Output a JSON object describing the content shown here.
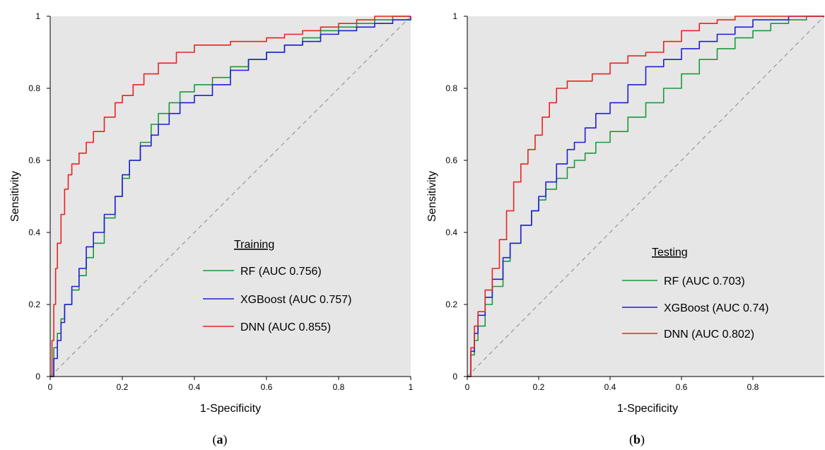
{
  "chart_data": [
    {
      "type": "line",
      "panel_label": "a",
      "xlabel": "1-Specificity",
      "ylabel": "Sensitivity",
      "xlim": [
        0,
        1
      ],
      "ylim": [
        0,
        1
      ],
      "x_ticks": [
        "0",
        "0.2",
        "0.4",
        "0.6",
        "0.8",
        "1"
      ],
      "y_ticks": [
        "0",
        "0.2",
        "0.4",
        "0.6",
        "0.8",
        "1"
      ],
      "grid": false,
      "background": "#e6e6e6",
      "legend_title": "Training",
      "legend_position": "lower-right",
      "series": [
        {
          "name": "RF (AUC 0.756)",
          "color": "#1a9a3a",
          "x": [
            0,
            0.01,
            0.02,
            0.03,
            0.04,
            0.06,
            0.08,
            0.1,
            0.12,
            0.15,
            0.18,
            0.2,
            0.22,
            0.25,
            0.28,
            0.3,
            0.33,
            0.36,
            0.4,
            0.45,
            0.5,
            0.55,
            0.6,
            0.65,
            0.7,
            0.75,
            0.8,
            0.85,
            0.9,
            0.95,
            1.0
          ],
          "y": [
            0,
            0.08,
            0.12,
            0.16,
            0.2,
            0.24,
            0.28,
            0.33,
            0.37,
            0.44,
            0.5,
            0.55,
            0.6,
            0.65,
            0.7,
            0.73,
            0.76,
            0.79,
            0.81,
            0.83,
            0.86,
            0.88,
            0.9,
            0.92,
            0.94,
            0.96,
            0.97,
            0.98,
            0.99,
            1.0,
            1.0
          ]
        },
        {
          "name": "XGBoost (AUC 0.757)",
          "color": "#1f1fd6",
          "x": [
            0,
            0.01,
            0.02,
            0.03,
            0.04,
            0.06,
            0.08,
            0.1,
            0.12,
            0.15,
            0.18,
            0.2,
            0.22,
            0.25,
            0.28,
            0.3,
            0.33,
            0.36,
            0.4,
            0.45,
            0.5,
            0.55,
            0.6,
            0.65,
            0.7,
            0.75,
            0.8,
            0.85,
            0.9,
            0.95,
            1.0
          ],
          "y": [
            0,
            0.05,
            0.1,
            0.15,
            0.2,
            0.25,
            0.3,
            0.36,
            0.4,
            0.45,
            0.5,
            0.56,
            0.6,
            0.64,
            0.67,
            0.7,
            0.73,
            0.76,
            0.78,
            0.81,
            0.85,
            0.88,
            0.9,
            0.92,
            0.93,
            0.95,
            0.96,
            0.97,
            0.98,
            0.99,
            1.0
          ]
        },
        {
          "name": "DNN (AUC 0.855)",
          "color": "#e8231e",
          "x": [
            0,
            0.005,
            0.01,
            0.015,
            0.02,
            0.03,
            0.04,
            0.05,
            0.06,
            0.08,
            0.1,
            0.12,
            0.15,
            0.18,
            0.2,
            0.23,
            0.26,
            0.3,
            0.35,
            0.4,
            0.45,
            0.5,
            0.55,
            0.6,
            0.65,
            0.7,
            0.75,
            0.8,
            0.85,
            0.9,
            0.95,
            1.0
          ],
          "y": [
            0,
            0.1,
            0.2,
            0.3,
            0.37,
            0.45,
            0.52,
            0.56,
            0.59,
            0.62,
            0.65,
            0.68,
            0.72,
            0.76,
            0.78,
            0.81,
            0.84,
            0.87,
            0.9,
            0.92,
            0.92,
            0.93,
            0.93,
            0.94,
            0.95,
            0.96,
            0.97,
            0.98,
            0.99,
            1.0,
            1.0,
            1.0
          ]
        }
      ]
    },
    {
      "type": "line",
      "panel_label": "b",
      "xlabel": "1-Specificity",
      "ylabel": "Sensitivity",
      "xlim": [
        0,
        1
      ],
      "ylim": [
        0,
        1
      ],
      "x_ticks": [
        "0",
        "0.2",
        "0.4",
        "0.6",
        "0.8"
      ],
      "y_ticks": [
        "0",
        "0.2",
        "0.4",
        "0.6",
        "0.8",
        "1"
      ],
      "grid": false,
      "background": "#e6e6e6",
      "legend_title": "Testing",
      "legend_position": "lower-right",
      "series": [
        {
          "name": "RF (AUC 0.703)",
          "color": "#1a9a3a",
          "x": [
            0,
            0.01,
            0.02,
            0.03,
            0.05,
            0.07,
            0.1,
            0.12,
            0.15,
            0.18,
            0.2,
            0.22,
            0.25,
            0.28,
            0.3,
            0.33,
            0.36,
            0.4,
            0.45,
            0.5,
            0.55,
            0.6,
            0.65,
            0.7,
            0.75,
            0.8,
            0.85,
            0.9,
            0.95,
            1.0
          ],
          "y": [
            0,
            0.06,
            0.1,
            0.14,
            0.2,
            0.25,
            0.32,
            0.37,
            0.42,
            0.46,
            0.49,
            0.52,
            0.55,
            0.58,
            0.6,
            0.62,
            0.65,
            0.68,
            0.72,
            0.76,
            0.8,
            0.84,
            0.88,
            0.91,
            0.94,
            0.96,
            0.98,
            0.99,
            1.0,
            1.0
          ]
        },
        {
          "name": "XGBoost (AUC 0.74)",
          "color": "#1f1fd6",
          "x": [
            0,
            0.01,
            0.02,
            0.03,
            0.05,
            0.07,
            0.1,
            0.12,
            0.15,
            0.18,
            0.2,
            0.22,
            0.25,
            0.28,
            0.3,
            0.33,
            0.36,
            0.4,
            0.45,
            0.5,
            0.55,
            0.6,
            0.65,
            0.7,
            0.75,
            0.8,
            0.85,
            0.9,
            0.95,
            1.0
          ],
          "y": [
            0,
            0.07,
            0.12,
            0.17,
            0.22,
            0.27,
            0.33,
            0.37,
            0.42,
            0.46,
            0.5,
            0.54,
            0.59,
            0.63,
            0.65,
            0.69,
            0.73,
            0.76,
            0.81,
            0.86,
            0.88,
            0.91,
            0.93,
            0.95,
            0.97,
            0.99,
            0.99,
            1.0,
            1.0,
            1.0
          ]
        },
        {
          "name": "DNN (AUC 0.802)",
          "color": "#e8231e",
          "x": [
            0,
            0.01,
            0.02,
            0.03,
            0.05,
            0.07,
            0.09,
            0.11,
            0.13,
            0.15,
            0.17,
            0.19,
            0.21,
            0.23,
            0.25,
            0.28,
            0.3,
            0.35,
            0.4,
            0.45,
            0.5,
            0.55,
            0.6,
            0.65,
            0.7,
            0.75,
            0.8,
            0.85,
            0.9,
            0.95,
            1.0
          ],
          "y": [
            0,
            0.08,
            0.14,
            0.18,
            0.24,
            0.3,
            0.38,
            0.46,
            0.54,
            0.59,
            0.63,
            0.67,
            0.72,
            0.76,
            0.8,
            0.82,
            0.82,
            0.84,
            0.87,
            0.89,
            0.9,
            0.93,
            0.96,
            0.98,
            0.99,
            1.0,
            1.0,
            1.0,
            1.0,
            1.0,
            1.0
          ]
        }
      ]
    }
  ]
}
